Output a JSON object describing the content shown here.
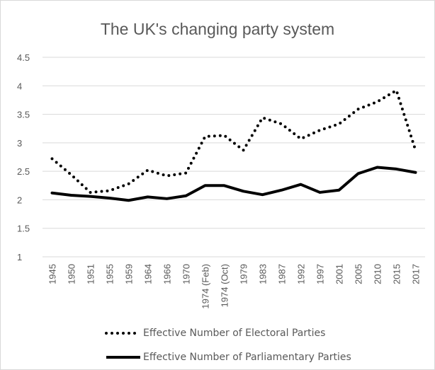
{
  "chart_data": {
    "type": "line",
    "title": "The UK's changing party system",
    "categories": [
      "1945",
      "1950",
      "1951",
      "1955",
      "1959",
      "1964",
      "1966",
      "1970",
      "1974 (Feb)",
      "1974 (Oct)",
      "1979",
      "1983",
      "1987",
      "1992",
      "1997",
      "2001",
      "2005",
      "2010",
      "2015",
      "2017"
    ],
    "series": [
      {
        "name": "Effective Number of Electoral Parties",
        "style": "dotted",
        "color": "#000000",
        "values": [
          2.72,
          2.44,
          2.13,
          2.16,
          2.28,
          2.52,
          2.42,
          2.47,
          3.11,
          3.13,
          2.87,
          3.44,
          3.33,
          3.07,
          3.22,
          3.33,
          3.59,
          3.72,
          3.92,
          2.87
        ]
      },
      {
        "name": "Effective Number of Parliamentary Parties",
        "style": "solid",
        "color": "#000000",
        "values": [
          2.12,
          2.08,
          2.06,
          2.03,
          1.99,
          2.05,
          2.02,
          2.07,
          2.25,
          2.25,
          2.15,
          2.09,
          2.17,
          2.27,
          2.13,
          2.17,
          2.46,
          2.57,
          2.54,
          2.48
        ]
      }
    ],
    "yticks": [
      "1",
      "1.5",
      "2",
      "2.5",
      "3",
      "3.5",
      "4",
      "4.5"
    ],
    "ylim": [
      1,
      4.5
    ],
    "xlabel": "",
    "ylabel": "",
    "grid": true,
    "legend_position": "bottom"
  }
}
